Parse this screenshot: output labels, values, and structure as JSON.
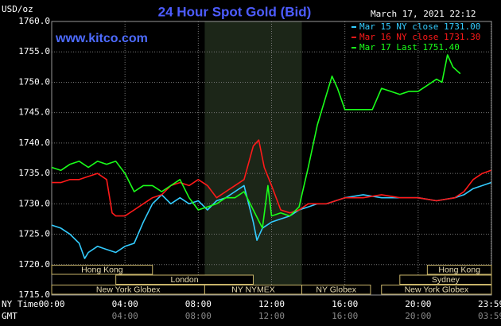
{
  "chart_data": {
    "type": "line",
    "title": "24 Hour Spot Gold (Bid)",
    "timestamp": "March 17, 2021 22:12",
    "website": "www.kitco.com",
    "y_unit": "USD/oz",
    "x_label": "NY Time",
    "x2_label": "GMT",
    "xlim": [
      0,
      24
    ],
    "ylim": [
      1715,
      1760
    ],
    "yticks": [
      {
        "value": 1715,
        "label": "1715.0"
      },
      {
        "value": 1720,
        "label": "1720.0"
      },
      {
        "value": 1725,
        "label": "1725.0"
      },
      {
        "value": 1730,
        "label": "1730.0"
      },
      {
        "value": 1735,
        "label": "1735.0"
      },
      {
        "value": 1740,
        "label": "1740.0"
      },
      {
        "value": 1745,
        "label": "1745.0"
      },
      {
        "value": 1750,
        "label": "1750.0"
      },
      {
        "value": 1755,
        "label": "1755.0"
      },
      {
        "value": 1760,
        "label": "1760.0"
      }
    ],
    "xticks": [
      {
        "value": 0,
        "label": "00:00"
      },
      {
        "value": 4,
        "label": "04:00"
      },
      {
        "value": 8,
        "label": "08:00"
      },
      {
        "value": 12,
        "label": "12:00"
      },
      {
        "value": 16,
        "label": "16:00"
      },
      {
        "value": 20,
        "label": "20:00"
      },
      {
        "value": 23.98,
        "label": "23:59"
      }
    ],
    "x2ticks": [
      "04:00",
      "08:00",
      "12:00",
      "16:00",
      "20:00",
      "03:59"
    ],
    "grid": true,
    "highlight_x": [
      8.35,
      13.65
    ],
    "session_rows": [
      [
        {
          "name": "Hong Kong",
          "start": 0,
          "end": 5.5
        },
        {
          "name": "Hong Kong",
          "start": 20.5,
          "end": 24
        }
      ],
      [
        {
          "name": "London",
          "start": 3.5,
          "end": 11
        },
        {
          "name": "Sydney",
          "start": 19,
          "end": 24
        }
      ],
      [
        {
          "name": "New York Globex",
          "start": 0,
          "end": 8.35
        },
        {
          "name": "NY NYMEX",
          "start": 8.35,
          "end": 13.65
        },
        {
          "name": "NY Globex",
          "start": 13.65,
          "end": 17.4
        },
        {
          "name": "New York Globex",
          "start": 18,
          "end": 24
        }
      ]
    ],
    "series": [
      {
        "name": "Mar 15 NY close 1731.00",
        "color": "#33ccff",
        "x": [
          0,
          0.5,
          1,
          1.5,
          1.8,
          2,
          2.5,
          3,
          3.5,
          4,
          4.5,
          5,
          5.5,
          6,
          6.5,
          7,
          7.5,
          8,
          8.5,
          9,
          9.5,
          10,
          10.5,
          11,
          11.2,
          11.5,
          12,
          12.5,
          13,
          13.5,
          14,
          14.5,
          15,
          15.5,
          16,
          17,
          18,
          19,
          20,
          21,
          22,
          22.5,
          23,
          23.5,
          23.98
        ],
        "values": [
          1726.5,
          1726,
          1725,
          1723.5,
          1721,
          1722,
          1723,
          1722.5,
          1722,
          1723,
          1723.5,
          1727,
          1730,
          1731.5,
          1730,
          1731,
          1730,
          1730.5,
          1729,
          1730.5,
          1731,
          1732,
          1733,
          1727,
          1724,
          1726,
          1727,
          1727.5,
          1728,
          1729,
          1729.5,
          1730,
          1730,
          1730.5,
          1731,
          1731.5,
          1731,
          1731,
          1731,
          1730.5,
          1731,
          1731.5,
          1732.5,
          1733,
          1733.5
        ]
      },
      {
        "name": "Mar 16 NY close 1731.30",
        "color": "#ff1a1a",
        "x": [
          0,
          0.5,
          1,
          1.5,
          2,
          2.5,
          3,
          3.3,
          3.5,
          4,
          4.5,
          5,
          5.5,
          6,
          6.5,
          7,
          7.5,
          8,
          8.5,
          9,
          9.5,
          10,
          10.5,
          11,
          11.3,
          11.6,
          12,
          12.5,
          13,
          13.5,
          14,
          14.5,
          15,
          15.5,
          16,
          17,
          18,
          19,
          20,
          21,
          22,
          22.5,
          23,
          23.5,
          23.98
        ],
        "values": [
          1733.5,
          1733.5,
          1734,
          1734,
          1734.5,
          1735,
          1734,
          1728.5,
          1728,
          1728,
          1729,
          1730,
          1731,
          1731.5,
          1733,
          1733.5,
          1733,
          1734,
          1733,
          1731,
          1732,
          1733,
          1734,
          1739.5,
          1740.5,
          1736,
          1733,
          1729,
          1728.5,
          1729,
          1730,
          1730,
          1730,
          1730.5,
          1731,
          1731,
          1731.5,
          1731,
          1731,
          1730.5,
          1731,
          1732,
          1734,
          1735,
          1735.5
        ]
      },
      {
        "name": "Mar 17 Last 1751.40",
        "color": "#1aff1a",
        "x": [
          0,
          0.5,
          1,
          1.5,
          2,
          2.5,
          3,
          3.5,
          4,
          4.5,
          5,
          5.5,
          6,
          6.5,
          7,
          7.5,
          8,
          8.5,
          9,
          9.5,
          10,
          10.5,
          11,
          11.5,
          11.8,
          12,
          12.5,
          13,
          13.5,
          14,
          14.5,
          15,
          15.3,
          15.6,
          16,
          16.5,
          17,
          17.5,
          18,
          18.5,
          19,
          19.5,
          20,
          20.5,
          21,
          21.3,
          21.6,
          21.9,
          22.3
        ],
        "values": [
          1736,
          1735.5,
          1736.5,
          1737,
          1736,
          1737,
          1736.5,
          1737,
          1735,
          1732,
          1733,
          1733,
          1732,
          1733,
          1734,
          1731,
          1729,
          1729.5,
          1730,
          1731,
          1731,
          1732,
          1729,
          1726,
          1733,
          1728,
          1728.5,
          1728,
          1729.5,
          1736,
          1743,
          1748,
          1751,
          1749,
          1745.5,
          1745.5,
          1745.5,
          1745.5,
          1749,
          1748.5,
          1748,
          1748.5,
          1748.5,
          1749.5,
          1750.5,
          1750,
          1754.5,
          1752.5,
          1751.4
        ]
      }
    ]
  }
}
